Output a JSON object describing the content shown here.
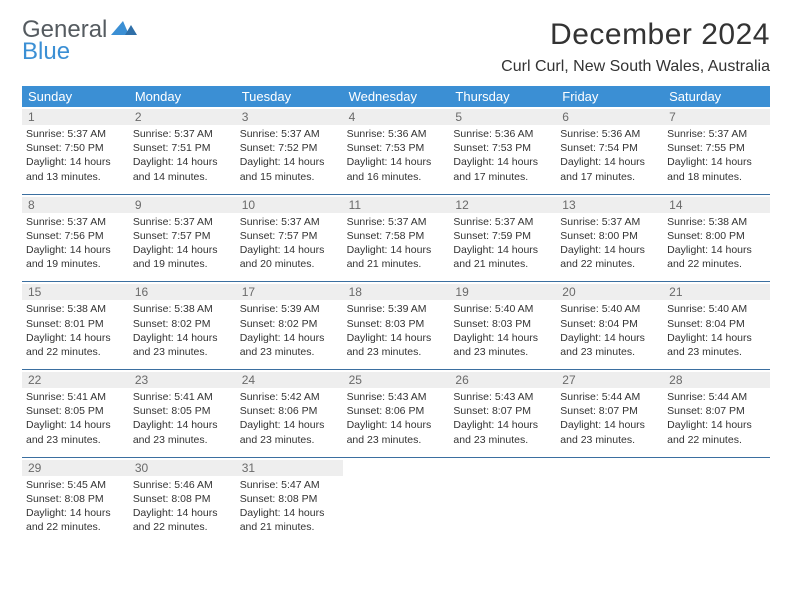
{
  "logo": {
    "top": "General",
    "bottom": "Blue"
  },
  "title": "December 2024",
  "location": "Curl Curl, New South Wales, Australia",
  "colors": {
    "header_bg": "#3b8fd4",
    "daynum_bg": "#eeeeee",
    "week_border": "#3b6fa0",
    "text": "#333333",
    "logo_blue": "#3b8fd4",
    "logo_gray": "#555b60"
  },
  "dows": [
    "Sunday",
    "Monday",
    "Tuesday",
    "Wednesday",
    "Thursday",
    "Friday",
    "Saturday"
  ],
  "weeks": [
    [
      {
        "n": "1",
        "sr": "5:37 AM",
        "ss": "7:50 PM",
        "dl": "14 hours and 13 minutes."
      },
      {
        "n": "2",
        "sr": "5:37 AM",
        "ss": "7:51 PM",
        "dl": "14 hours and 14 minutes."
      },
      {
        "n": "3",
        "sr": "5:37 AM",
        "ss": "7:52 PM",
        "dl": "14 hours and 15 minutes."
      },
      {
        "n": "4",
        "sr": "5:36 AM",
        "ss": "7:53 PM",
        "dl": "14 hours and 16 minutes."
      },
      {
        "n": "5",
        "sr": "5:36 AM",
        "ss": "7:53 PM",
        "dl": "14 hours and 17 minutes."
      },
      {
        "n": "6",
        "sr": "5:36 AM",
        "ss": "7:54 PM",
        "dl": "14 hours and 17 minutes."
      },
      {
        "n": "7",
        "sr": "5:37 AM",
        "ss": "7:55 PM",
        "dl": "14 hours and 18 minutes."
      }
    ],
    [
      {
        "n": "8",
        "sr": "5:37 AM",
        "ss": "7:56 PM",
        "dl": "14 hours and 19 minutes."
      },
      {
        "n": "9",
        "sr": "5:37 AM",
        "ss": "7:57 PM",
        "dl": "14 hours and 19 minutes."
      },
      {
        "n": "10",
        "sr": "5:37 AM",
        "ss": "7:57 PM",
        "dl": "14 hours and 20 minutes."
      },
      {
        "n": "11",
        "sr": "5:37 AM",
        "ss": "7:58 PM",
        "dl": "14 hours and 21 minutes."
      },
      {
        "n": "12",
        "sr": "5:37 AM",
        "ss": "7:59 PM",
        "dl": "14 hours and 21 minutes."
      },
      {
        "n": "13",
        "sr": "5:37 AM",
        "ss": "8:00 PM",
        "dl": "14 hours and 22 minutes."
      },
      {
        "n": "14",
        "sr": "5:38 AM",
        "ss": "8:00 PM",
        "dl": "14 hours and 22 minutes."
      }
    ],
    [
      {
        "n": "15",
        "sr": "5:38 AM",
        "ss": "8:01 PM",
        "dl": "14 hours and 22 minutes."
      },
      {
        "n": "16",
        "sr": "5:38 AM",
        "ss": "8:02 PM",
        "dl": "14 hours and 23 minutes."
      },
      {
        "n": "17",
        "sr": "5:39 AM",
        "ss": "8:02 PM",
        "dl": "14 hours and 23 minutes."
      },
      {
        "n": "18",
        "sr": "5:39 AM",
        "ss": "8:03 PM",
        "dl": "14 hours and 23 minutes."
      },
      {
        "n": "19",
        "sr": "5:40 AM",
        "ss": "8:03 PM",
        "dl": "14 hours and 23 minutes."
      },
      {
        "n": "20",
        "sr": "5:40 AM",
        "ss": "8:04 PM",
        "dl": "14 hours and 23 minutes."
      },
      {
        "n": "21",
        "sr": "5:40 AM",
        "ss": "8:04 PM",
        "dl": "14 hours and 23 minutes."
      }
    ],
    [
      {
        "n": "22",
        "sr": "5:41 AM",
        "ss": "8:05 PM",
        "dl": "14 hours and 23 minutes."
      },
      {
        "n": "23",
        "sr": "5:41 AM",
        "ss": "8:05 PM",
        "dl": "14 hours and 23 minutes."
      },
      {
        "n": "24",
        "sr": "5:42 AM",
        "ss": "8:06 PM",
        "dl": "14 hours and 23 minutes."
      },
      {
        "n": "25",
        "sr": "5:43 AM",
        "ss": "8:06 PM",
        "dl": "14 hours and 23 minutes."
      },
      {
        "n": "26",
        "sr": "5:43 AM",
        "ss": "8:07 PM",
        "dl": "14 hours and 23 minutes."
      },
      {
        "n": "27",
        "sr": "5:44 AM",
        "ss": "8:07 PM",
        "dl": "14 hours and 23 minutes."
      },
      {
        "n": "28",
        "sr": "5:44 AM",
        "ss": "8:07 PM",
        "dl": "14 hours and 22 minutes."
      }
    ],
    [
      {
        "n": "29",
        "sr": "5:45 AM",
        "ss": "8:08 PM",
        "dl": "14 hours and 22 minutes."
      },
      {
        "n": "30",
        "sr": "5:46 AM",
        "ss": "8:08 PM",
        "dl": "14 hours and 22 minutes."
      },
      {
        "n": "31",
        "sr": "5:47 AM",
        "ss": "8:08 PM",
        "dl": "14 hours and 21 minutes."
      },
      null,
      null,
      null,
      null
    ]
  ],
  "labels": {
    "sunrise": "Sunrise:",
    "sunset": "Sunset:",
    "daylight": "Daylight:"
  }
}
